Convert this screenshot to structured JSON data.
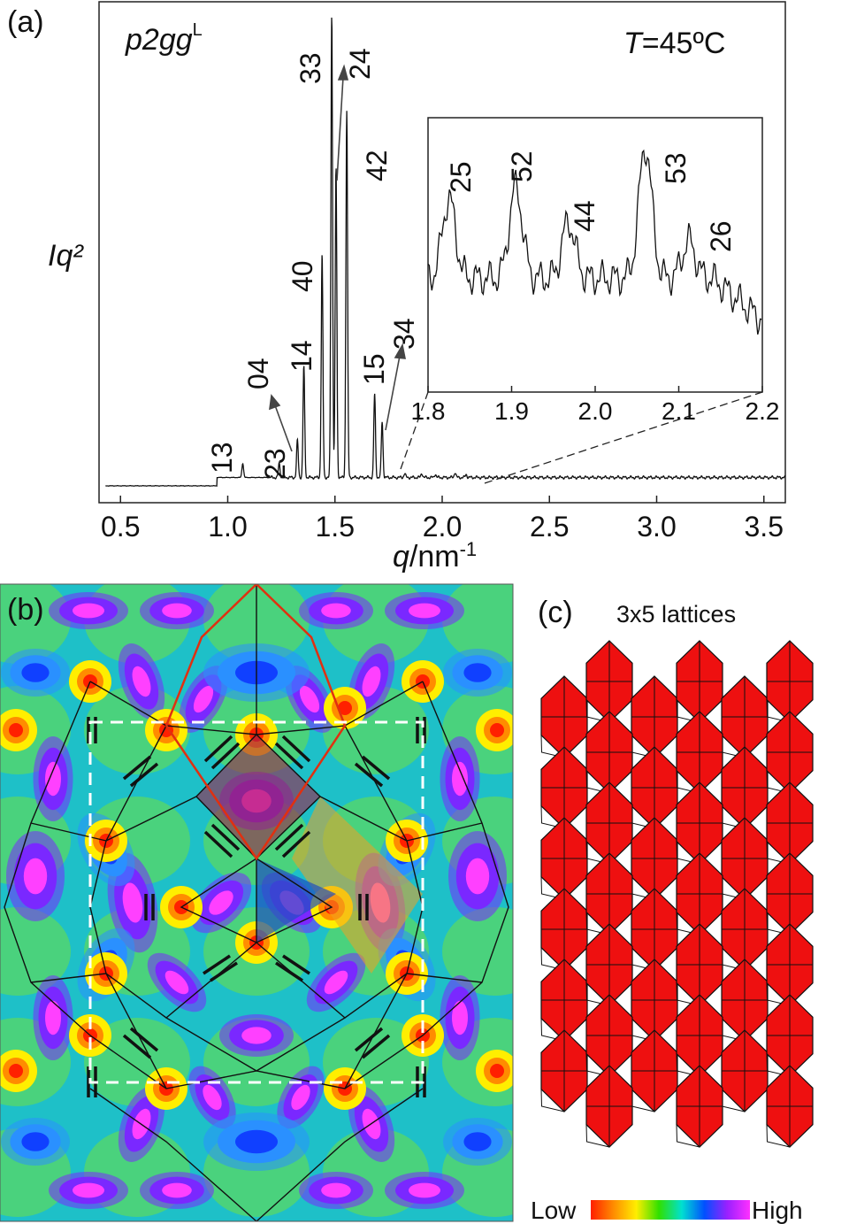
{
  "panels": {
    "a": {
      "label": "(a)"
    },
    "b": {
      "label": "(b)"
    },
    "c": {
      "label": "(c)",
      "title": "3x5 lattices"
    }
  },
  "colorbar": {
    "low": "Low",
    "high": "High",
    "colors": [
      "#ff2000",
      "#ff8c00",
      "#ffee00",
      "#30e000",
      "#00e0d0",
      "#0050ff",
      "#9a20ff",
      "#ff30ff"
    ]
  },
  "chart_data": {
    "type": "line",
    "group_label": "p2gg",
    "group_superscript": "L",
    "temperature_var": "T",
    "temperature_value": "=45ºC",
    "ylabel": "Iq²",
    "xlabel_var": "q",
    "xlabel_unit": "/nm",
    "xlabel_exp": "-1",
    "xlim": [
      0.4,
      3.6
    ],
    "xticks": [
      "0.5",
      "1.0",
      "1.5",
      "2.0",
      "2.5",
      "3.0",
      "3.5"
    ],
    "xtick_values": [
      0.5,
      1.0,
      1.5,
      2.0,
      2.5,
      3.0,
      3.5
    ],
    "ylim": [
      0,
      100
    ],
    "baseline": 2,
    "peaks": [
      {
        "label": "13",
        "q": 1.07,
        "h": 3
      },
      {
        "label": "23",
        "q": 1.24,
        "h": 3
      },
      {
        "label": "04",
        "q": 1.325,
        "h": 8
      },
      {
        "label": "14",
        "q": 1.355,
        "h": 24
      },
      {
        "label": "40",
        "q": 1.44,
        "h": 48
      },
      {
        "label": "33",
        "q": 1.485,
        "h": 100
      },
      {
        "label": "24",
        "q": 1.505,
        "h": 67
      },
      {
        "label": "42",
        "q": 1.555,
        "h": 79
      },
      {
        "label": "15",
        "q": 1.685,
        "h": 18
      },
      {
        "label": "34",
        "q": 1.72,
        "h": 12
      }
    ],
    "inset": {
      "xlim": [
        1.8,
        2.2
      ],
      "xticks": [
        "1.8",
        "1.9",
        "2.0",
        "2.1",
        "2.2"
      ],
      "xtick_values": [
        1.8,
        1.9,
        2.0,
        2.1,
        2.2
      ],
      "ylim": [
        0,
        100
      ],
      "peaks": [
        {
          "label": "25",
          "q": 1.825,
          "h": 72
        },
        {
          "label": "52",
          "q": 1.905,
          "h": 77
        },
        {
          "label": "44",
          "q": 1.968,
          "h": 62
        },
        {
          "label": "53",
          "q": 2.06,
          "h": 94
        },
        {
          "label": "26",
          "q": 2.112,
          "h": 54
        }
      ]
    }
  }
}
